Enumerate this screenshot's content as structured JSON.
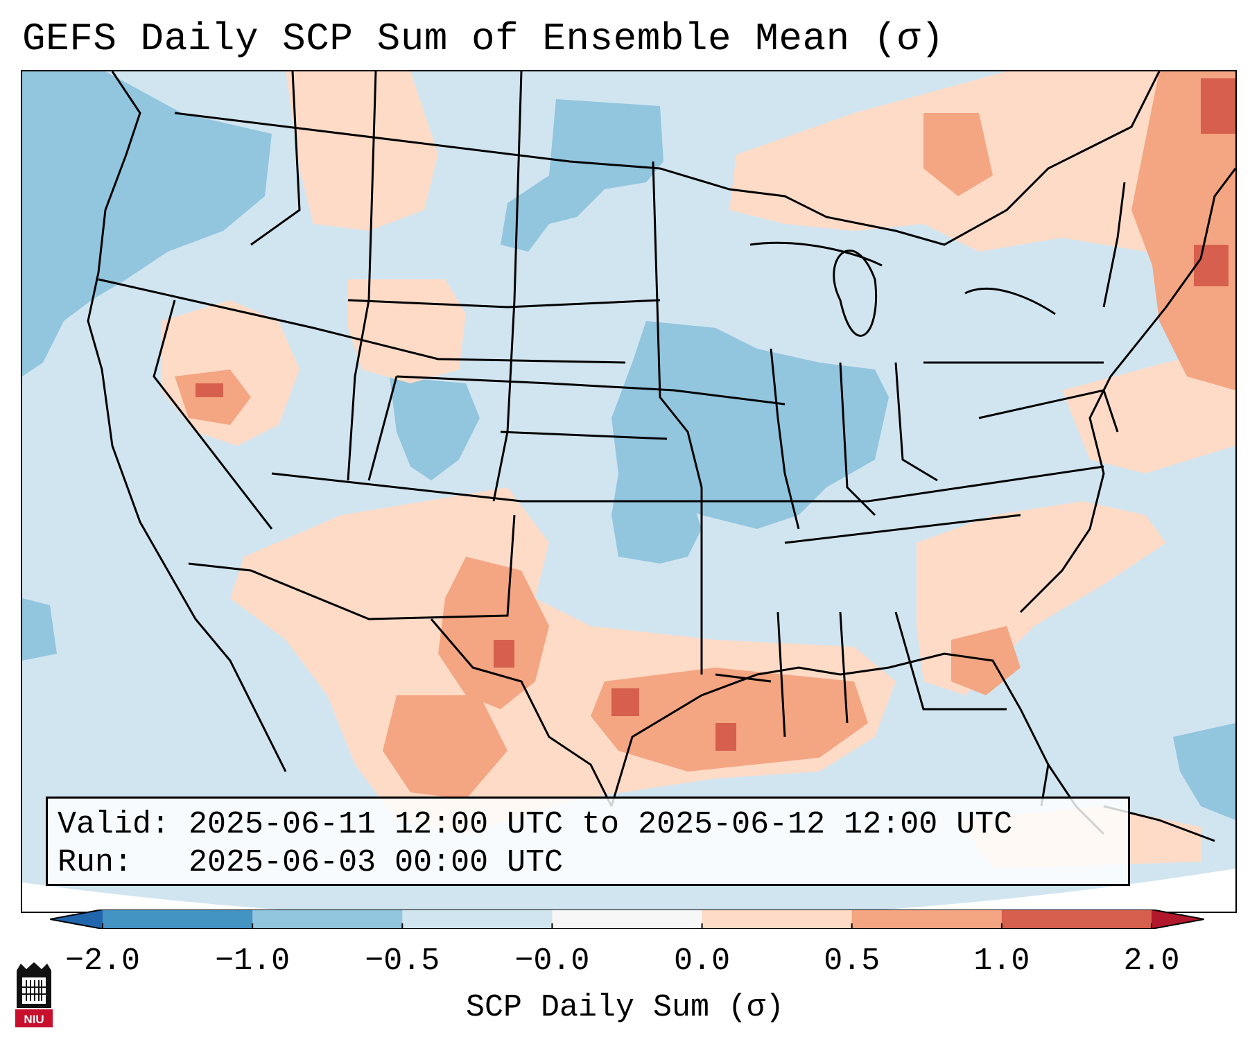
{
  "title": "GEFS Daily SCP Sum of Ensemble Mean (σ)",
  "info": {
    "valid_line": "Valid: 2025-06-11 12:00 UTC to 2025-06-12 12:00 UTC",
    "run_line": "Run:   2025-06-03 00:00 UTC"
  },
  "colorbar": {
    "label": "SCP Daily Sum (σ)",
    "ticks": [
      "−2.0",
      "−1.0",
      "−0.5",
      "−0.0",
      "0.0",
      "0.5",
      "1.0",
      "2.0"
    ],
    "bins": [
      {
        "range": "< -2.0",
        "color": "#2166ac"
      },
      {
        "range": "-2.0 to -1.0",
        "color": "#4393c3"
      },
      {
        "range": "-1.0 to -0.5",
        "color": "#92c5de"
      },
      {
        "range": "-0.5 to -0.0",
        "color": "#d1e5f0"
      },
      {
        "range": "-0.0 to 0.0",
        "color": "#f7f7f7"
      },
      {
        "range": "0.0 to 0.5",
        "color": "#fddbc7"
      },
      {
        "range": "0.5 to 1.0",
        "color": "#f4a582"
      },
      {
        "range": "1.0 to 2.0",
        "color": "#d6604d"
      },
      {
        "range": "> 2.0",
        "color": "#b2182b"
      }
    ]
  },
  "logo": {
    "text": "NIU",
    "name": "niu-logo"
  },
  "map": {
    "region": "Contiguous United States",
    "background_category": "-0.5 to -0.0",
    "regions": [
      {
        "name": "northern-plains-negative",
        "category": "-1.0 to -0.5"
      },
      {
        "name": "midwest-negative",
        "category": "-1.0 to -0.5"
      },
      {
        "name": "southern-plains-negative",
        "category": "-1.0 to -0.5"
      },
      {
        "name": "pacific-northwest-negative",
        "category": "-1.0 to -0.5"
      },
      {
        "name": "colorado-negative",
        "category": "-1.0 to -0.5"
      },
      {
        "name": "nevada-positive",
        "category": "0.0 to 0.5"
      },
      {
        "name": "wyoming-positive",
        "category": "0.0 to 0.5"
      },
      {
        "name": "texas-positive",
        "category": "0.5 to 1.0"
      },
      {
        "name": "gulf-positive",
        "category": "0.5 to 1.0"
      },
      {
        "name": "northeast-positive",
        "category": "0.5 to 1.0"
      },
      {
        "name": "great-lakes-positive",
        "category": "0.0 to 0.5"
      },
      {
        "name": "southeast-positive",
        "category": "0.0 to 0.5"
      },
      {
        "name": "atlantic-positive",
        "category": "0.0 to 0.5"
      }
    ]
  }
}
